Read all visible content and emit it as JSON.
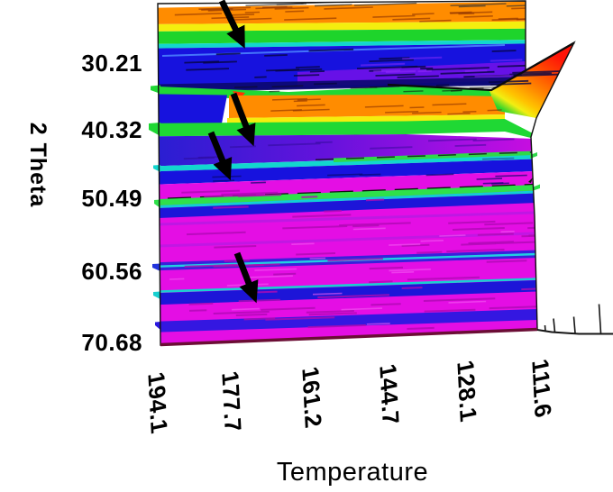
{
  "figure": {
    "background": "#ffffff",
    "description": "Temperature-dependent 2-Theta rainbow intensity map with four black annotation arrows"
  },
  "axes": {
    "x": {
      "title": "Temperature",
      "tick_labels": [
        "194.1",
        "177.7",
        "161.2",
        "144.7",
        "128.1",
        "111.6"
      ]
    },
    "y": {
      "title": "2 Theta",
      "tick_labels": [
        "30.21",
        "40.32",
        "50.49",
        "60.56",
        "70.68"
      ]
    }
  },
  "colors": {
    "magenta_low": "#e40ee4",
    "blue": "#1712de",
    "purple": "#7c12e8",
    "cyan": "#12d6ce",
    "green": "#1ed42b",
    "yellow": "#f4ee0e",
    "orange": "#ff8c00",
    "red_high": "#ff1408",
    "arrow": "#000000"
  },
  "chart_data": {
    "type": "heatmap",
    "title": "",
    "xlabel": "Temperature",
    "ylabel": "2 Theta",
    "x_tick_labels": [
      "194.1",
      "177.7",
      "161.2",
      "144.7",
      "128.1",
      "111.6"
    ],
    "y_tick_labels": [
      "30.21",
      "40.32",
      "50.49",
      "60.56",
      "70.68"
    ],
    "x_axis_direction": "values decrease left to right (194.1 to 111.6)",
    "y_axis_direction": "values increase top to bottom (approx 22 to 71)",
    "colormap": "rainbow, red/orange = high intensity, blue/magenta = low intensity",
    "strong_rainbow_bands_2theta_ranges": [
      [
        22.0,
        28.0
      ],
      [
        34.0,
        40.5
      ]
    ],
    "visible_peak_stripes_2theta": [
      27.8,
      34.0,
      39.8,
      45.5,
      50.6,
      59.9,
      64.2,
      68.5
    ],
    "hotspot": {
      "description": "red intensity maximum flaring up at the low-temperature (right) edge",
      "temperature_approx": 111,
      "two_theta_range_approx": [
        27,
        38
      ]
    },
    "annotation_arrows": [
      {
        "direction": "down-right",
        "points_to": {
          "temperature_approx": 175.5,
          "two_theta_approx": 27.9
        }
      },
      {
        "direction": "down-right",
        "points_to": {
          "temperature_approx": 173.4,
          "two_theta_approx": 42.3
        }
      },
      {
        "direction": "down-right",
        "points_to": {
          "temperature_approx": 178.4,
          "two_theta_approx": 47.2
        }
      },
      {
        "direction": "down-right",
        "points_to": {
          "temperature_approx": 172.6,
          "two_theta_approx": 64.8
        }
      }
    ]
  }
}
